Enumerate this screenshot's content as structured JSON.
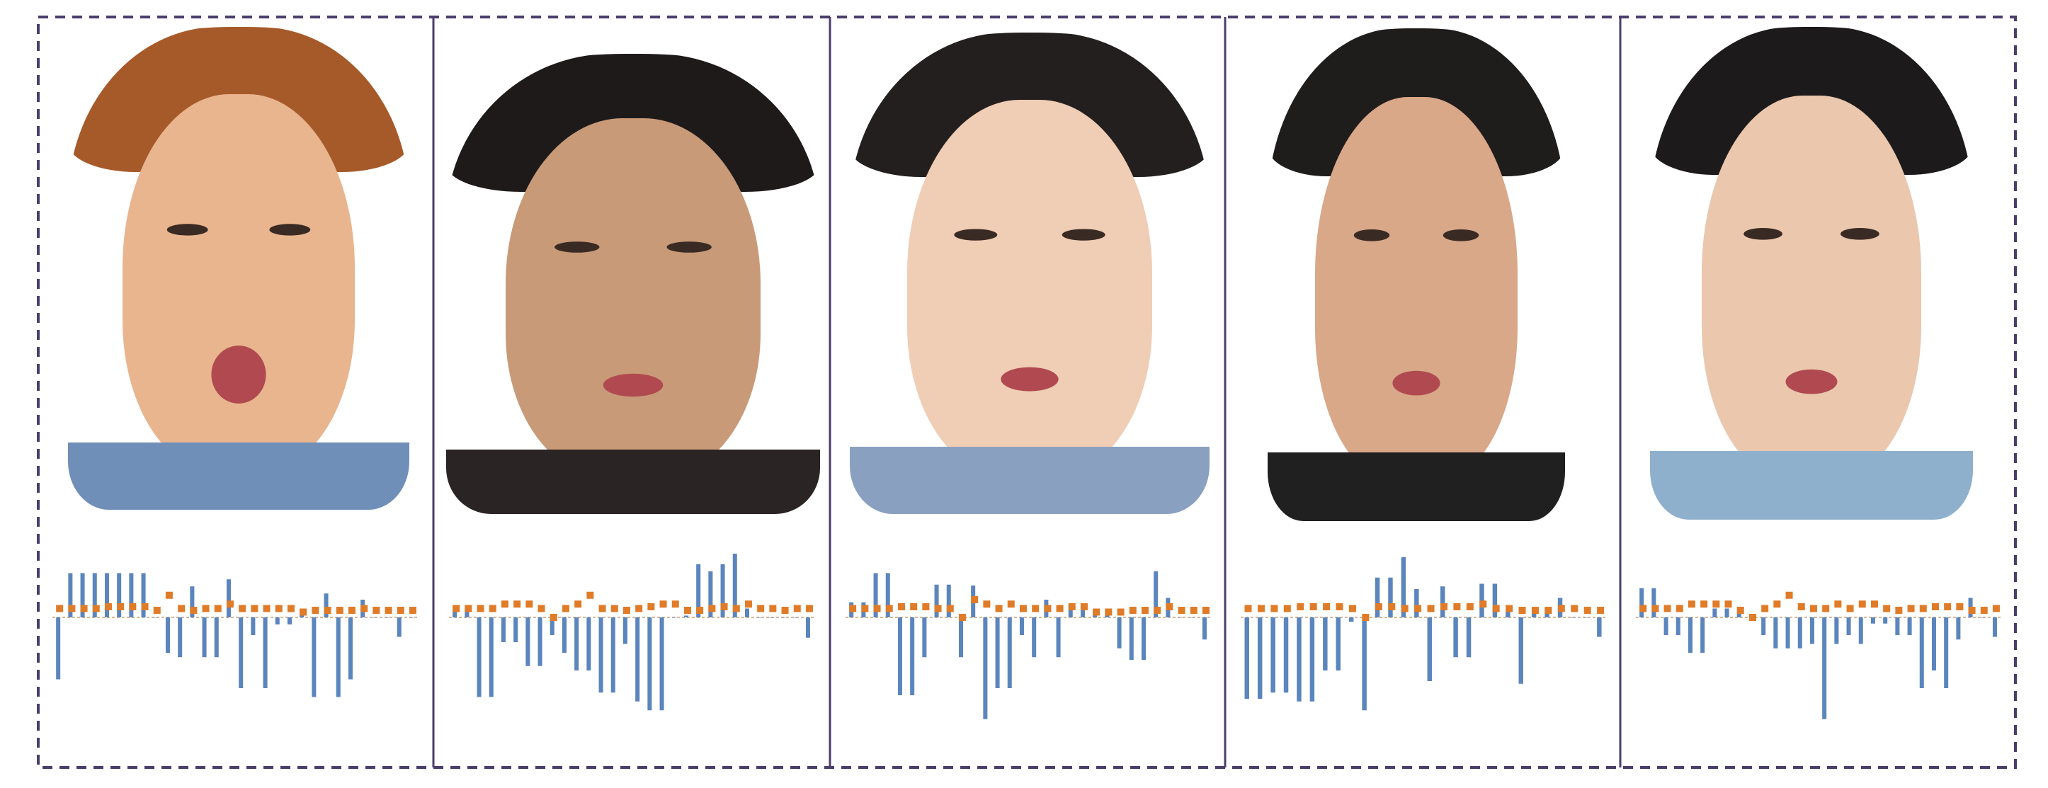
{
  "colors": {
    "bar": "#5b85bd",
    "marker": "#e07b28",
    "border": "#4a3e6b",
    "baseline": "#c9a078"
  },
  "panels": [
    {
      "portrait": {
        "hair": "#a65a2a",
        "skin": "#e8b58e",
        "shirt": "#6f8fb8",
        "expression": "yawning"
      }
    },
    {
      "portrait": {
        "hair": "#1e1a1a",
        "skin": "#c99a78",
        "shirt": "#2a2424",
        "expression": "surprised"
      }
    },
    {
      "portrait": {
        "hair": "#231f1f",
        "skin": "#f0cdb5",
        "shirt": "#8aa0c0",
        "expression": "confused"
      }
    },
    {
      "portrait": {
        "hair": "#1f1c1c",
        "skin": "#d9a888",
        "shirt": "#202020",
        "expression": "squinting"
      }
    },
    {
      "portrait": {
        "hair": "#1c1a1a",
        "skin": "#eac7ad",
        "shirt": "#8fb0cc",
        "expression": "sleepy"
      }
    }
  ],
  "chart_data": [
    {
      "type": "bar",
      "series": [
        {
          "values": [
            -0.7,
            0.5,
            0.5,
            0.5,
            0.5,
            0.5,
            0.5,
            0.5,
            0.0,
            -0.4,
            -0.45,
            0.35,
            -0.45,
            -0.45,
            0.43,
            -0.8,
            -0.2,
            -0.8,
            -0.08,
            -0.08,
            0.1,
            -0.9,
            0.27,
            -0.9,
            -0.7,
            0.2,
            0.0,
            0.0,
            -0.22,
            0.0
          ]
        },
        {
          "values": [
            0.1,
            0.1,
            0.1,
            0.1,
            0.12,
            0.12,
            0.12,
            0.12,
            0.08,
            0.25,
            0.1,
            0.08,
            0.1,
            0.1,
            0.15,
            0.1,
            0.1,
            0.1,
            0.1,
            0.1,
            0.06,
            0.08,
            0.08,
            0.08,
            0.08,
            0.1,
            0.08,
            0.08,
            0.08,
            0.08
          ]
        }
      ]
    },
    {
      "type": "bar",
      "series": [
        {
          "values": [
            0.1,
            0.1,
            -0.9,
            -0.9,
            -0.28,
            -0.28,
            -0.55,
            -0.55,
            -0.2,
            -0.4,
            -0.6,
            -0.6,
            -0.85,
            -0.85,
            -0.3,
            -0.95,
            -1.05,
            -1.05,
            0.0,
            0.02,
            0.6,
            0.52,
            0.6,
            0.72,
            0.1,
            0.0,
            0.0,
            0.0,
            0.0,
            -0.23
          ]
        },
        {
          "values": [
            0.1,
            0.1,
            0.1,
            0.1,
            0.15,
            0.15,
            0.15,
            0.1,
            0.0,
            0.1,
            0.15,
            0.25,
            0.1,
            0.1,
            0.08,
            0.1,
            0.12,
            0.15,
            0.15,
            0.08,
            0.08,
            0.1,
            0.12,
            0.1,
            0.15,
            0.1,
            0.1,
            0.08,
            0.1,
            0.1
          ]
        }
      ]
    },
    {
      "type": "bar",
      "series": [
        {
          "values": [
            0.17,
            0.17,
            0.5,
            0.5,
            -0.88,
            -0.88,
            -0.45,
            0.37,
            0.37,
            -0.45,
            0.36,
            -1.15,
            -0.8,
            -0.8,
            -0.2,
            -0.45,
            0.2,
            -0.45,
            0.14,
            0.14,
            0.1,
            0.1,
            -0.35,
            -0.48,
            -0.48,
            0.52,
            0.22,
            0.0,
            0.0,
            -0.25
          ]
        },
        {
          "values": [
            0.1,
            0.1,
            0.1,
            0.1,
            0.12,
            0.12,
            0.12,
            0.1,
            0.1,
            0.0,
            0.2,
            0.15,
            0.1,
            0.15,
            0.1,
            0.1,
            0.1,
            0.1,
            0.12,
            0.12,
            0.06,
            0.06,
            0.06,
            0.08,
            0.08,
            0.08,
            0.12,
            0.08,
            0.08,
            0.08
          ]
        }
      ]
    },
    {
      "type": "bar",
      "series": [
        {
          "values": [
            -0.92,
            -0.92,
            -0.85,
            -0.85,
            -0.95,
            -0.95,
            -0.6,
            -0.6,
            -0.05,
            -1.05,
            0.45,
            0.45,
            0.68,
            0.32,
            -0.72,
            0.35,
            -0.45,
            -0.45,
            0.38,
            0.38,
            0.06,
            -0.75,
            0.1,
            0.1,
            0.22,
            0.0,
            0.0,
            -0.22
          ]
        },
        {
          "values": [
            0.1,
            0.1,
            0.1,
            0.1,
            0.12,
            0.12,
            0.12,
            0.12,
            0.1,
            0.0,
            0.12,
            0.12,
            0.1,
            0.1,
            0.1,
            0.12,
            0.12,
            0.12,
            0.15,
            0.1,
            0.1,
            0.08,
            0.08,
            0.08,
            0.1,
            0.1,
            0.08,
            0.08
          ]
        }
      ]
    },
    {
      "type": "bar",
      "series": [
        {
          "values": [
            0.33,
            0.33,
            -0.2,
            -0.2,
            -0.4,
            -0.4,
            0.1,
            0.1,
            0.1,
            0.0,
            -0.2,
            -0.35,
            -0.35,
            -0.35,
            -0.3,
            -1.15,
            -0.3,
            -0.2,
            -0.3,
            -0.07,
            -0.07,
            -0.2,
            -0.2,
            -0.8,
            -0.6,
            -0.8,
            -0.25,
            0.22,
            0.0,
            -0.22
          ]
        },
        {
          "values": [
            0.1,
            0.1,
            0.1,
            0.1,
            0.15,
            0.15,
            0.15,
            0.15,
            0.08,
            0.0,
            0.1,
            0.15,
            0.25,
            0.12,
            0.1,
            0.1,
            0.15,
            0.1,
            0.15,
            0.15,
            0.1,
            0.08,
            0.1,
            0.1,
            0.12,
            0.12,
            0.12,
            0.08,
            0.08,
            0.1
          ]
        }
      ]
    }
  ]
}
